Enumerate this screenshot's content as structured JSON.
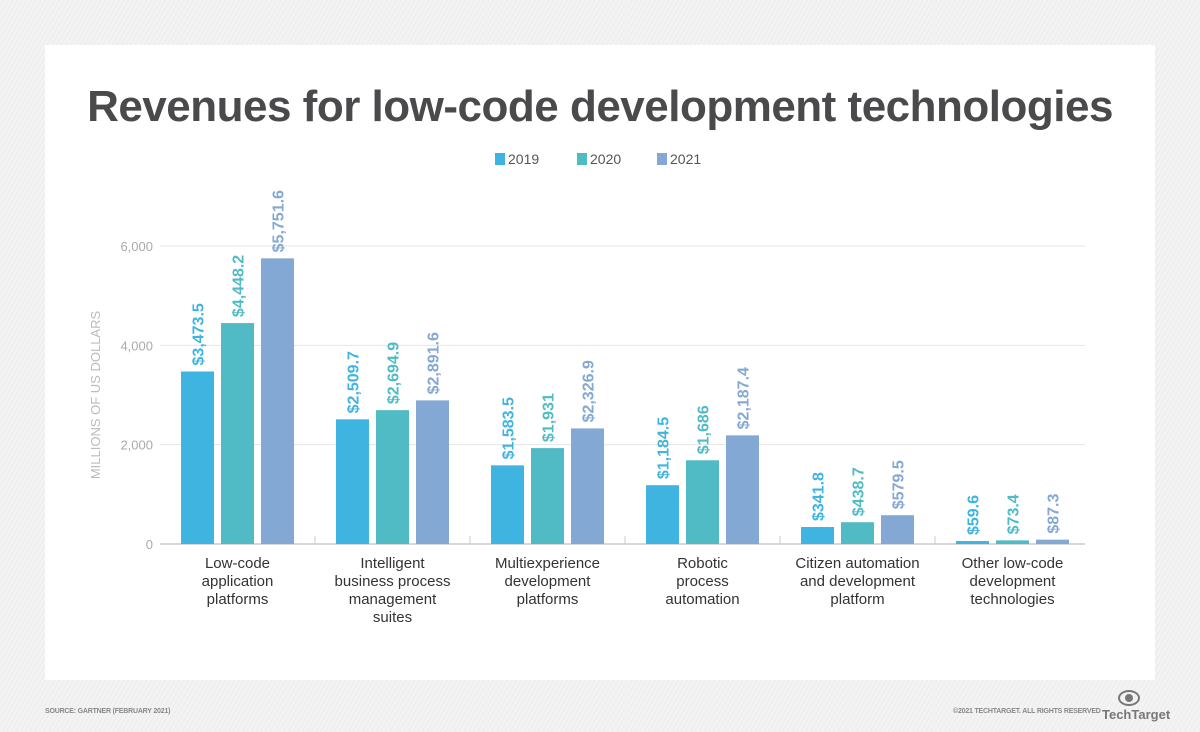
{
  "chart_data": {
    "type": "bar",
    "title": "Revenues for low-code development technologies",
    "ylabel": "MILLIONS OF US DOLLARS",
    "xlabel": "",
    "ylim": [
      0,
      6000
    ],
    "yticks": [
      "0",
      "2,000",
      "4,000",
      "6,000"
    ],
    "ytick_values": [
      0,
      2000,
      4000,
      6000
    ],
    "grid": true,
    "legend": "top-center",
    "categories": [
      [
        "Low-code",
        "application",
        "platforms"
      ],
      [
        "Intelligent",
        "business process",
        "management",
        "suites"
      ],
      [
        "Multiexperience",
        "development",
        "platforms"
      ],
      [
        "Robotic",
        "process",
        "automation"
      ],
      [
        "Citizen automation",
        "and development",
        "platform"
      ],
      [
        "Other low-code",
        "development",
        "technologies"
      ]
    ],
    "series": [
      {
        "name": "2019",
        "color": "#40b4e0",
        "values": [
          3473.5,
          2509.7,
          1583.5,
          1184.5,
          341.8,
          59.6
        ],
        "labels": [
          "$3,473.5",
          "$2,509.7",
          "$1,583.5",
          "$1,184.5",
          "$341.8",
          "$59.6"
        ]
      },
      {
        "name": "2020",
        "color": "#51bbc5",
        "values": [
          4448.2,
          2694.9,
          1931,
          1686,
          438.7,
          73.4
        ],
        "labels": [
          "$4,448.2",
          "$2,694.9",
          "$1,931",
          "$1,686",
          "$438.7",
          "$73.4"
        ]
      },
      {
        "name": "2021",
        "color": "#84a8d4",
        "values": [
          5751.6,
          2891.6,
          2326.9,
          2187.4,
          579.5,
          87.3
        ],
        "labels": [
          "$5,751.6",
          "$2,891.6",
          "$2,326.9",
          "$2,187.4",
          "$579.5",
          "$87.3"
        ]
      }
    ]
  },
  "footer": {
    "source": "SOURCE: GARTNER (FEBRUARY 2021)",
    "copyright": "©2021 TECHTARGET. ALL RIGHTS RESERVED",
    "logo": "TechTarget"
  }
}
